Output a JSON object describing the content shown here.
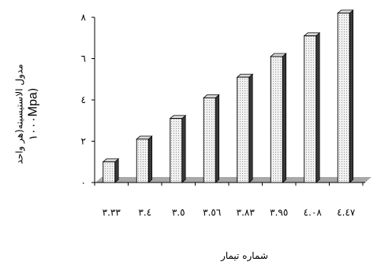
{
  "chart_data": {
    "type": "bar",
    "categories": [
      "٣.٣٣",
      "٣.٤",
      "٣.٥",
      "٣.٥٦",
      "٣.٨٣",
      "٣.٩٥",
      "٤.٠٨",
      "٤.٤٧"
    ],
    "values": [
      1.0,
      2.1,
      3.1,
      4.1,
      5.1,
      6.1,
      7.1,
      8.2
    ],
    "ylim": [
      0,
      8
    ],
    "yticks": [
      0,
      2,
      4,
      6,
      8
    ],
    "ytick_labels": [
      "٠",
      "٢",
      "٤",
      "٦",
      "٨"
    ],
    "ylabel": "مدول الاستیسیته(هر واحد",
    "ylabel_line2_prefix": "١٠٠٠",
    "ylabel_line2_unit": "Mpa",
    "ylabel_line2_suffix": ")",
    "xlabel": "شماره تیمار",
    "grid": false,
    "bar_style": "3d-dotted",
    "bar_color": "#e4e4e4",
    "floor_color": "#a8a8a8"
  }
}
